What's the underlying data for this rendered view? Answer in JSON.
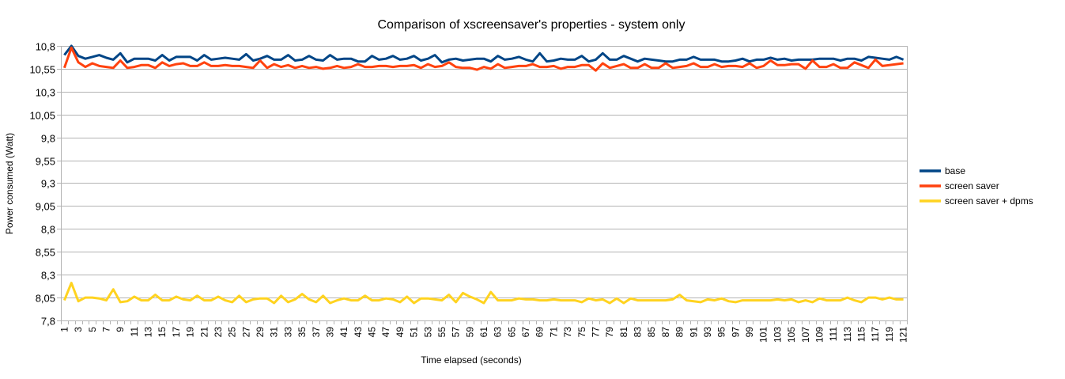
{
  "chart_data": {
    "type": "line",
    "title": "Comparison of xscreensaver's properties - system only",
    "xlabel": "Time elapsed (seconds)",
    "ylabel": "Power consumed (Watt)",
    "ylim": [
      7.8,
      10.8
    ],
    "y_ticks": [
      "7,8",
      "8,05",
      "8,3",
      "8,55",
      "8,8",
      "9,05",
      "9,3",
      "9,55",
      "9,8",
      "10,05",
      "10,3",
      "10,55",
      "10,8"
    ],
    "y_tick_values": [
      7.8,
      8.05,
      8.3,
      8.55,
      8.8,
      9.05,
      9.3,
      9.55,
      9.8,
      10.05,
      10.3,
      10.55,
      10.8
    ],
    "x_tick_label_step": 2,
    "grid": "horizontal",
    "legend": "right",
    "categories": [
      1,
      2,
      3,
      4,
      5,
      6,
      7,
      8,
      9,
      10,
      11,
      12,
      13,
      14,
      15,
      16,
      17,
      18,
      19,
      20,
      21,
      22,
      23,
      24,
      25,
      26,
      27,
      28,
      29,
      30,
      31,
      32,
      33,
      34,
      35,
      36,
      37,
      38,
      39,
      40,
      41,
      42,
      43,
      44,
      45,
      46,
      47,
      48,
      49,
      50,
      51,
      52,
      53,
      54,
      55,
      56,
      57,
      58,
      59,
      60,
      61,
      62,
      63,
      64,
      65,
      66,
      67,
      68,
      69,
      70,
      71,
      72,
      73,
      74,
      75,
      76,
      77,
      78,
      79,
      80,
      81,
      82,
      83,
      84,
      85,
      86,
      87,
      88,
      89,
      90,
      91,
      92,
      93,
      94,
      95,
      96,
      97,
      98,
      99,
      100,
      101,
      102,
      103,
      104,
      105,
      106,
      107,
      108,
      109,
      110,
      111,
      112,
      113,
      114,
      115,
      116,
      117,
      118,
      119,
      120,
      121
    ],
    "series": [
      {
        "name": "base",
        "color": "#004586",
        "values": [
          10.7,
          10.8,
          10.69,
          10.66,
          10.68,
          10.7,
          10.67,
          10.65,
          10.72,
          10.62,
          10.66,
          10.66,
          10.66,
          10.64,
          10.7,
          10.64,
          10.68,
          10.68,
          10.68,
          10.64,
          10.7,
          10.65,
          10.66,
          10.67,
          10.66,
          10.65,
          10.71,
          10.64,
          10.66,
          10.69,
          10.65,
          10.65,
          10.7,
          10.64,
          10.65,
          10.69,
          10.65,
          10.64,
          10.7,
          10.65,
          10.66,
          10.66,
          10.63,
          10.63,
          10.69,
          10.65,
          10.66,
          10.69,
          10.65,
          10.66,
          10.69,
          10.64,
          10.66,
          10.7,
          10.62,
          10.65,
          10.66,
          10.64,
          10.65,
          10.66,
          10.66,
          10.63,
          10.69,
          10.65,
          10.66,
          10.68,
          10.65,
          10.63,
          10.72,
          10.63,
          10.64,
          10.66,
          10.65,
          10.65,
          10.69,
          10.63,
          10.65,
          10.72,
          10.65,
          10.65,
          10.69,
          10.66,
          10.63,
          10.66,
          10.65,
          10.64,
          10.63,
          10.63,
          10.65,
          10.65,
          10.68,
          10.65,
          10.65,
          10.65,
          10.63,
          10.63,
          10.64,
          10.66,
          10.63,
          10.65,
          10.65,
          10.67,
          10.65,
          10.66,
          10.64,
          10.65,
          10.65,
          10.65,
          10.66,
          10.66,
          10.66,
          10.64,
          10.66,
          10.66,
          10.64,
          10.68,
          10.67,
          10.66,
          10.65,
          10.68,
          10.65
        ]
      },
      {
        "name": "screen saver",
        "color": "#ff420e",
        "values": [
          10.56,
          10.78,
          10.62,
          10.57,
          10.61,
          10.58,
          10.57,
          10.56,
          10.64,
          10.56,
          10.57,
          10.59,
          10.59,
          10.56,
          10.62,
          10.58,
          10.6,
          10.61,
          10.58,
          10.58,
          10.62,
          10.58,
          10.58,
          10.59,
          10.58,
          10.58,
          10.57,
          10.56,
          10.64,
          10.56,
          10.6,
          10.57,
          10.59,
          10.56,
          10.58,
          10.56,
          10.57,
          10.55,
          10.56,
          10.58,
          10.56,
          10.57,
          10.6,
          10.57,
          10.57,
          10.58,
          10.58,
          10.57,
          10.58,
          10.58,
          10.59,
          10.56,
          10.6,
          10.57,
          10.58,
          10.62,
          10.57,
          10.56,
          10.56,
          10.54,
          10.57,
          10.55,
          10.6,
          10.56,
          10.57,
          10.58,
          10.58,
          10.6,
          10.57,
          10.57,
          10.58,
          10.55,
          10.57,
          10.57,
          10.59,
          10.59,
          10.53,
          10.61,
          10.56,
          10.58,
          10.6,
          10.56,
          10.56,
          10.6,
          10.56,
          10.56,
          10.61,
          10.56,
          10.57,
          10.58,
          10.61,
          10.57,
          10.57,
          10.6,
          10.57,
          10.58,
          10.58,
          10.57,
          10.61,
          10.56,
          10.58,
          10.64,
          10.59,
          10.59,
          10.6,
          10.6,
          10.55,
          10.64,
          10.57,
          10.57,
          10.6,
          10.56,
          10.56,
          10.62,
          10.59,
          10.56,
          10.65,
          10.58,
          10.59,
          10.6,
          10.61
        ]
      },
      {
        "name": "screen saver + dpms",
        "color": "#ffd320",
        "values": [
          8.02,
          8.21,
          8.01,
          8.05,
          8.05,
          8.04,
          8.02,
          8.14,
          8.0,
          8.01,
          8.06,
          8.02,
          8.02,
          8.08,
          8.02,
          8.02,
          8.06,
          8.03,
          8.02,
          8.07,
          8.02,
          8.02,
          8.06,
          8.02,
          8.0,
          8.07,
          8.0,
          8.03,
          8.04,
          8.04,
          7.99,
          8.07,
          8.0,
          8.03,
          8.09,
          8.03,
          8.0,
          8.07,
          7.99,
          8.02,
          8.04,
          8.02,
          8.02,
          8.07,
          8.02,
          8.02,
          8.04,
          8.03,
          8.0,
          8.06,
          7.99,
          8.04,
          8.04,
          8.03,
          8.02,
          8.08,
          8.0,
          8.1,
          8.06,
          8.03,
          7.99,
          8.11,
          8.02,
          8.02,
          8.02,
          8.04,
          8.03,
          8.03,
          8.02,
          8.02,
          8.03,
          8.02,
          8.02,
          8.02,
          8.0,
          8.04,
          8.02,
          8.03,
          7.99,
          8.04,
          7.99,
          8.04,
          8.02,
          8.02,
          8.02,
          8.02,
          8.02,
          8.03,
          8.08,
          8.02,
          8.01,
          8.0,
          8.03,
          8.02,
          8.04,
          8.01,
          8.0,
          8.02,
          8.02,
          8.02,
          8.02,
          8.02,
          8.03,
          8.02,
          8.03,
          8.0,
          8.02,
          8.0,
          8.04,
          8.02,
          8.02,
          8.02,
          8.05,
          8.02,
          8.0,
          8.05,
          8.05,
          8.03,
          8.05,
          8.03,
          8.03
        ]
      }
    ]
  }
}
